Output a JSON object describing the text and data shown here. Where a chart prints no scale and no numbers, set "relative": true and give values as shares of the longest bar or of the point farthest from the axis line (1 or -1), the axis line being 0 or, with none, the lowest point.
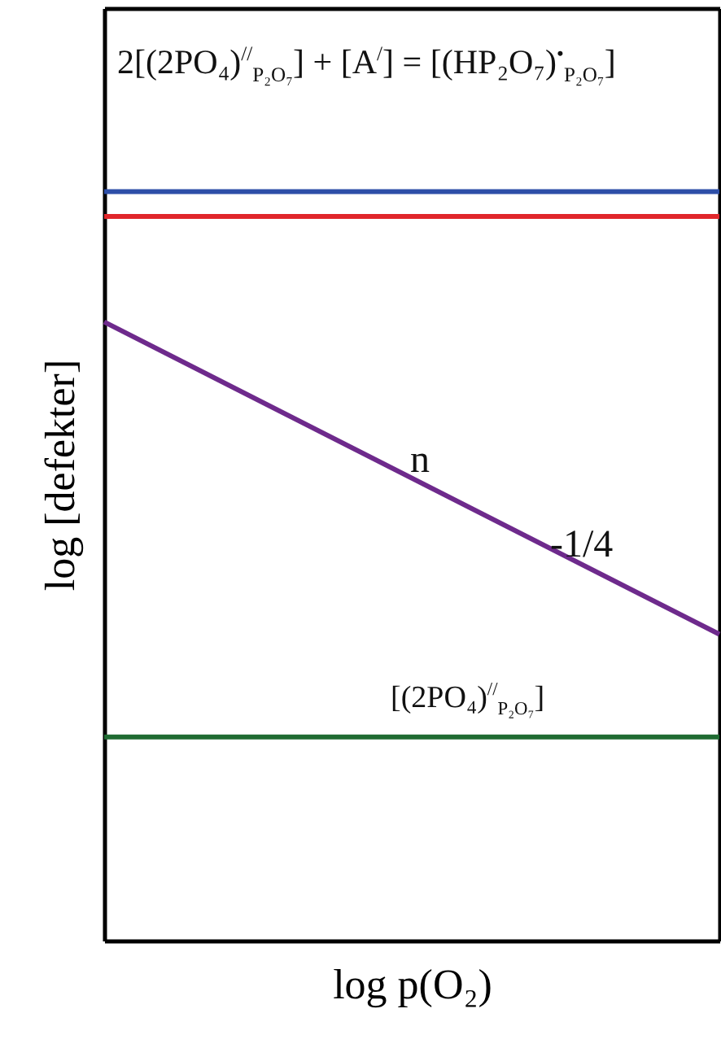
{
  "chart_data": {
    "type": "line",
    "relative": true,
    "xlabel": "log p(O₂)",
    "ylabel": "log [defekter]",
    "categories": [
      null,
      null
    ],
    "series": [
      {
        "color": "#2e4fa8",
        "values": [
          1,
          1
        ]
      },
      {
        "color": "#e0262b",
        "values": [
          0.967,
          0.967
        ]
      },
      {
        "color": "#6e2a8c",
        "values": [
          0.826,
          0.409
        ]
      },
      {
        "color": "#1f6b32",
        "values": [
          0.272,
          0.272
        ]
      }
    ],
    "annotations": [
      "2[(2PO₄)$^{//}$$_{P₂O₇}$] + [A$^{/}$] = [(HP₂O₇)$^{•}$$_{P₂O₇}$]",
      "n",
      "-1/4",
      "[(2PO₄)$^{//}$$_{P₂O₇}$]"
    ],
    "grid": false,
    "marker": "none"
  }
}
